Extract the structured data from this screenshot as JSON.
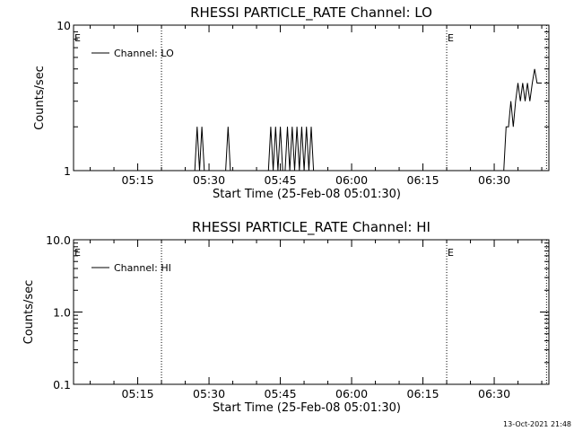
{
  "chart_data": [
    {
      "type": "line",
      "title": "RHESSI PARTICLE_RATE Channel: LO",
      "xlabel": "Start Time (25-Feb-08 05:01:30)",
      "ylabel": "Counts/sec",
      "y_scale": "log",
      "ylim": [
        1,
        10
      ],
      "y_ticks": [
        "1",
        "10"
      ],
      "xlim": [
        "05:01:30",
        "06:41:30"
      ],
      "x_ticks": [
        "05:15",
        "05:30",
        "05:45",
        "06:00",
        "06:15",
        "06:30"
      ],
      "legend": {
        "entries": [
          "Channel: LO"
        ],
        "placement": "top-left"
      },
      "event_markers": [
        {
          "x": "05:01:30",
          "label": "E"
        },
        {
          "x": "06:20:00",
          "label": "E"
        }
      ],
      "vertical_dotted_lines": [
        "05:20:00",
        "06:20:00",
        "06:41:00"
      ],
      "series": [
        {
          "name": "Channel: LO",
          "x": [
            "05:27:00",
            "05:27:30",
            "05:28:00",
            "05:28:30",
            "05:29:00",
            "05:29:30",
            "05:30:00",
            "05:33:30",
            "05:34:00",
            "05:34:30",
            "05:42:30",
            "05:43:00",
            "05:43:30",
            "05:44:00",
            "05:44:30",
            "05:45:00",
            "05:45:30",
            "05:46:00",
            "05:46:30",
            "05:47:00",
            "05:47:30",
            "05:48:00",
            "05:48:30",
            "05:49:00",
            "05:49:30",
            "05:50:00",
            "05:50:30",
            "05:51:00",
            "05:51:30",
            "05:52:00",
            "05:52:30",
            "06:32:00",
            "06:32:30",
            "06:33:00",
            "06:33:30",
            "06:34:00",
            "06:34:30",
            "06:35:00",
            "06:35:30",
            "06:36:00",
            "06:36:30",
            "06:37:00",
            "06:37:30",
            "06:38:00",
            "06:38:30",
            "06:39:00",
            "06:39:30",
            "06:40:00"
          ],
          "y": [
            1,
            2,
            1,
            2,
            1,
            1,
            1,
            1,
            2,
            1,
            1,
            2,
            1,
            2,
            1,
            2,
            1,
            1,
            2,
            1,
            2,
            1,
            2,
            1,
            2,
            1,
            2,
            1,
            2,
            1,
            1,
            1,
            2,
            2,
            3,
            2,
            3,
            4,
            3,
            4,
            3,
            4,
            3,
            4,
            5,
            4,
            4,
            4
          ]
        }
      ]
    },
    {
      "type": "line",
      "title": "RHESSI PARTICLE_RATE Channel: HI",
      "xlabel": "Start Time (25-Feb-08 05:01:30)",
      "ylabel": "Counts/sec",
      "y_scale": "log",
      "ylim": [
        0.1,
        10
      ],
      "y_ticks": [
        "0.1",
        "1.0",
        "10.0"
      ],
      "xlim": [
        "05:01:30",
        "06:41:30"
      ],
      "x_ticks": [
        "05:15",
        "05:30",
        "05:45",
        "06:00",
        "06:15",
        "06:30"
      ],
      "legend": {
        "entries": [
          "Channel: HI"
        ],
        "placement": "top-left"
      },
      "event_markers": [
        {
          "x": "05:01:30",
          "label": "E"
        },
        {
          "x": "06:20:00",
          "label": "E"
        }
      ],
      "vertical_dotted_lines": [
        "05:20:00",
        "06:20:00",
        "06:41:00"
      ],
      "series": [
        {
          "name": "Channel: HI",
          "x": [],
          "y": []
        }
      ]
    }
  ],
  "footer": {
    "timestamp": "13-Oct-2021 21:48"
  }
}
